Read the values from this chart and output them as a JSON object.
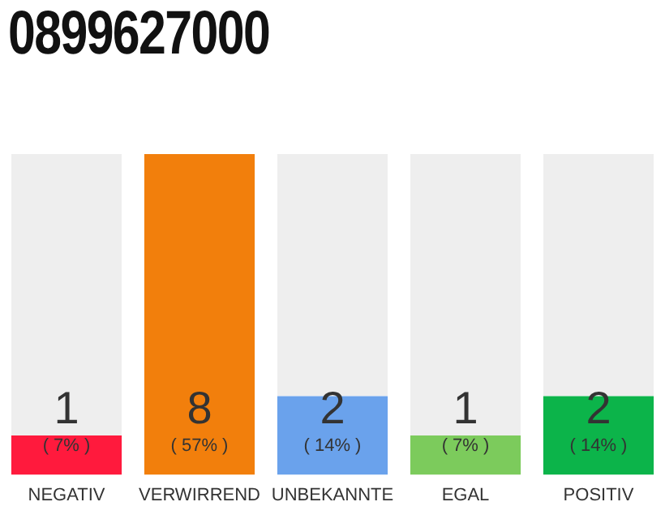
{
  "chart_data": {
    "type": "bar",
    "title": "0899627000",
    "categories": [
      "NEGATIV",
      "VERWIRREND",
      "UNBEKANNTE",
      "EGAL",
      "POSITIV"
    ],
    "values": [
      7,
      57,
      14,
      7,
      14
    ],
    "colors": [
      "#ff1a3d",
      "#f27f0c",
      "#6aa2ec",
      "#7ccb5c",
      "#0cb44a"
    ],
    "value_labels": [
      "( 7% )",
      "( 57% )",
      "( 14% )",
      "( 7% )",
      "( 14% )"
    ],
    "annotations": [
      "1",
      "8",
      "2",
      "1",
      "2"
    ],
    "tick_labels": "x",
    "grid": false,
    "legend": false
  }
}
